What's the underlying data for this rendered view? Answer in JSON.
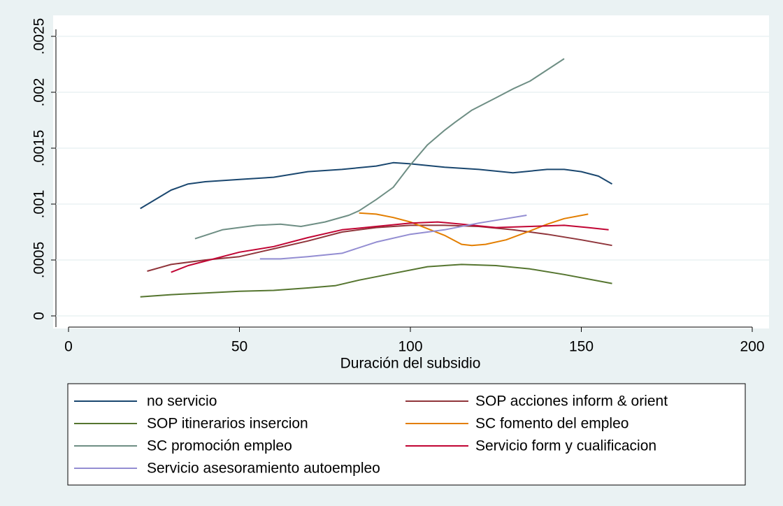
{
  "chart_data": {
    "type": "line",
    "xlabel": "Duración del subsidio",
    "xlim": [
      0,
      200
    ],
    "xticks": [
      0,
      50,
      100,
      150,
      200
    ],
    "ylim": [
      0,
      0.0025
    ],
    "yticks": [
      0,
      {
        "value": 0.0005,
        "label": ".0005"
      },
      {
        "value": 0.001,
        "label": ".001"
      },
      {
        "value": 0.0015,
        "label": ".0015"
      },
      {
        "value": 0.002,
        "label": ".002"
      },
      {
        "value": 0.0025,
        "label": ".0025"
      }
    ],
    "grid": true,
    "legend": "bottom",
    "series": [
      {
        "name": "no servicio",
        "color": "#1a476f",
        "x": [
          21,
          30,
          35,
          40,
          50,
          60,
          70,
          80,
          90,
          95,
          100,
          110,
          120,
          130,
          140,
          145,
          150,
          155,
          159
        ],
        "values": [
          0.00096,
          0.001125,
          0.00118,
          0.0012,
          0.00122,
          0.00124,
          0.00129,
          0.00131,
          0.00134,
          0.00137,
          0.00136,
          0.00133,
          0.00131,
          0.00128,
          0.00131,
          0.00131,
          0.00129,
          0.00125,
          0.00118
        ]
      },
      {
        "name": "SOP acciones inform & orient",
        "color": "#90353b",
        "x": [
          23,
          30,
          40,
          50,
          60,
          70,
          80,
          90,
          100,
          110,
          120,
          130,
          140,
          150,
          159
        ],
        "values": [
          0.0004,
          0.00046,
          0.0005,
          0.00053,
          0.0006,
          0.00067,
          0.00075,
          0.00079,
          0.00081,
          0.00081,
          0.0008,
          0.00077,
          0.00073,
          0.00068,
          0.00063
        ]
      },
      {
        "name": "SOP itinerarios insercion",
        "color": "#55752f",
        "x": [
          21,
          30,
          40,
          50,
          60,
          70,
          78,
          85,
          95,
          105,
          115,
          125,
          135,
          145,
          159
        ],
        "values": [
          0.00017,
          0.00019,
          0.000205,
          0.00022,
          0.000228,
          0.00025,
          0.00027,
          0.00032,
          0.00038,
          0.00044,
          0.00046,
          0.00045,
          0.00042,
          0.00037,
          0.00029
        ]
      },
      {
        "name": "SC fomento del empleo",
        "color": "#e37e00",
        "x": [
          85,
          90,
          95,
          100,
          105,
          110,
          115,
          118,
          122,
          128,
          135,
          140,
          145,
          152
        ],
        "values": [
          0.00092,
          0.00091,
          0.00088,
          0.00084,
          0.00078,
          0.00072,
          0.00064,
          0.00063,
          0.00064,
          0.00068,
          0.00076,
          0.00082,
          0.00087,
          0.00091
        ]
      },
      {
        "name": "SC promoción empleo",
        "color": "#6e8e84",
        "x": [
          37,
          45,
          55,
          62,
          68,
          75,
          82,
          85,
          90,
          95,
          100,
          105,
          110,
          113,
          118,
          125,
          130,
          135,
          140,
          145
        ],
        "values": [
          0.00069,
          0.00077,
          0.00081,
          0.00082,
          0.0008,
          0.00084,
          0.0009,
          0.00094,
          0.00104,
          0.00115,
          0.00135,
          0.00153,
          0.00166,
          0.00173,
          0.00184,
          0.00195,
          0.00203,
          0.0021,
          0.0022,
          0.0023
        ]
      },
      {
        "name": "Servicio form y cualificacion",
        "color": "#c10534",
        "x": [
          30,
          35,
          40,
          50,
          60,
          70,
          80,
          90,
          100,
          108,
          115,
          125,
          135,
          145,
          152,
          158
        ],
        "values": [
          0.00039,
          0.00045,
          0.00049,
          0.00057,
          0.00062,
          0.0007,
          0.00077,
          0.0008,
          0.00083,
          0.00084,
          0.00082,
          0.00079,
          0.0008,
          0.00081,
          0.00079,
          0.00077
        ]
      },
      {
        "name": "Servicio asesoramiento autoempleo",
        "color": "#938dd2",
        "x": [
          56,
          62,
          70,
          80,
          90,
          100,
          110,
          120,
          128,
          134
        ],
        "values": [
          0.00051,
          0.00051,
          0.00053,
          0.00056,
          0.00066,
          0.00073,
          0.00077,
          0.00083,
          0.00087,
          0.0009
        ]
      }
    ]
  }
}
